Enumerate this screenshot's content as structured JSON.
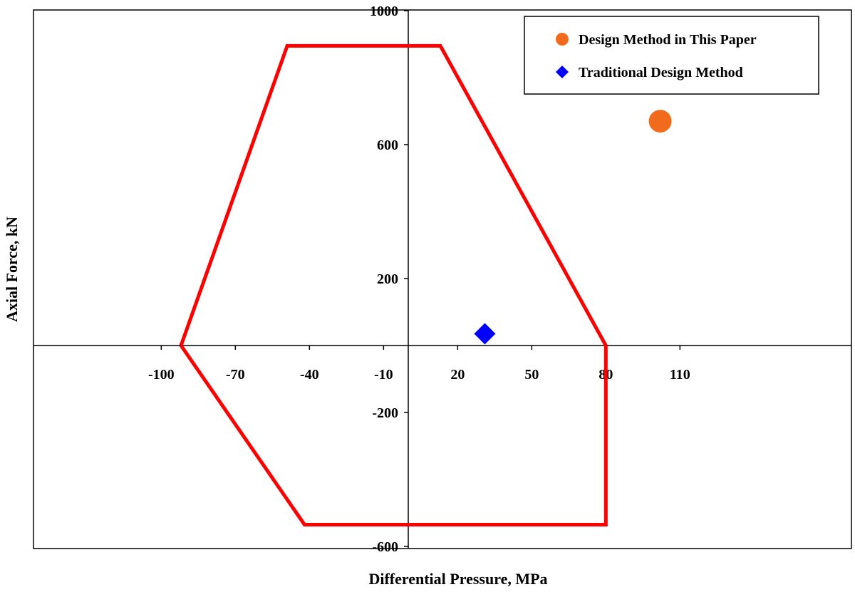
{
  "chart_data": {
    "type": "scatter",
    "xlabel": "Differential Pressure, MPa",
    "ylabel": "Axial Force, kN",
    "xlim": [
      -100,
      120
    ],
    "ylim": [
      -600,
      1000
    ],
    "x_ticks": [
      -100,
      -70,
      -40,
      -10,
      20,
      50,
      80,
      110
    ],
    "y_ticks": [
      1000,
      600,
      200,
      -200,
      -600
    ],
    "grid": false,
    "legend_position": "top-right",
    "envelope": {
      "color": "#ff0000",
      "points": [
        [
          -92,
          0
        ],
        [
          -49,
          895
        ],
        [
          13,
          895
        ],
        [
          80,
          0
        ],
        [
          80,
          -535
        ],
        [
          -42,
          -535
        ],
        [
          -92,
          0
        ]
      ]
    },
    "series": [
      {
        "name": "Design Method in This Paper",
        "marker": "circle",
        "color": "#f26b1d",
        "points": [
          [
            102,
            670
          ]
        ]
      },
      {
        "name": "Traditional Design Method",
        "marker": "diamond",
        "color": "#0000ff",
        "points": [
          [
            31,
            35
          ]
        ]
      }
    ]
  }
}
